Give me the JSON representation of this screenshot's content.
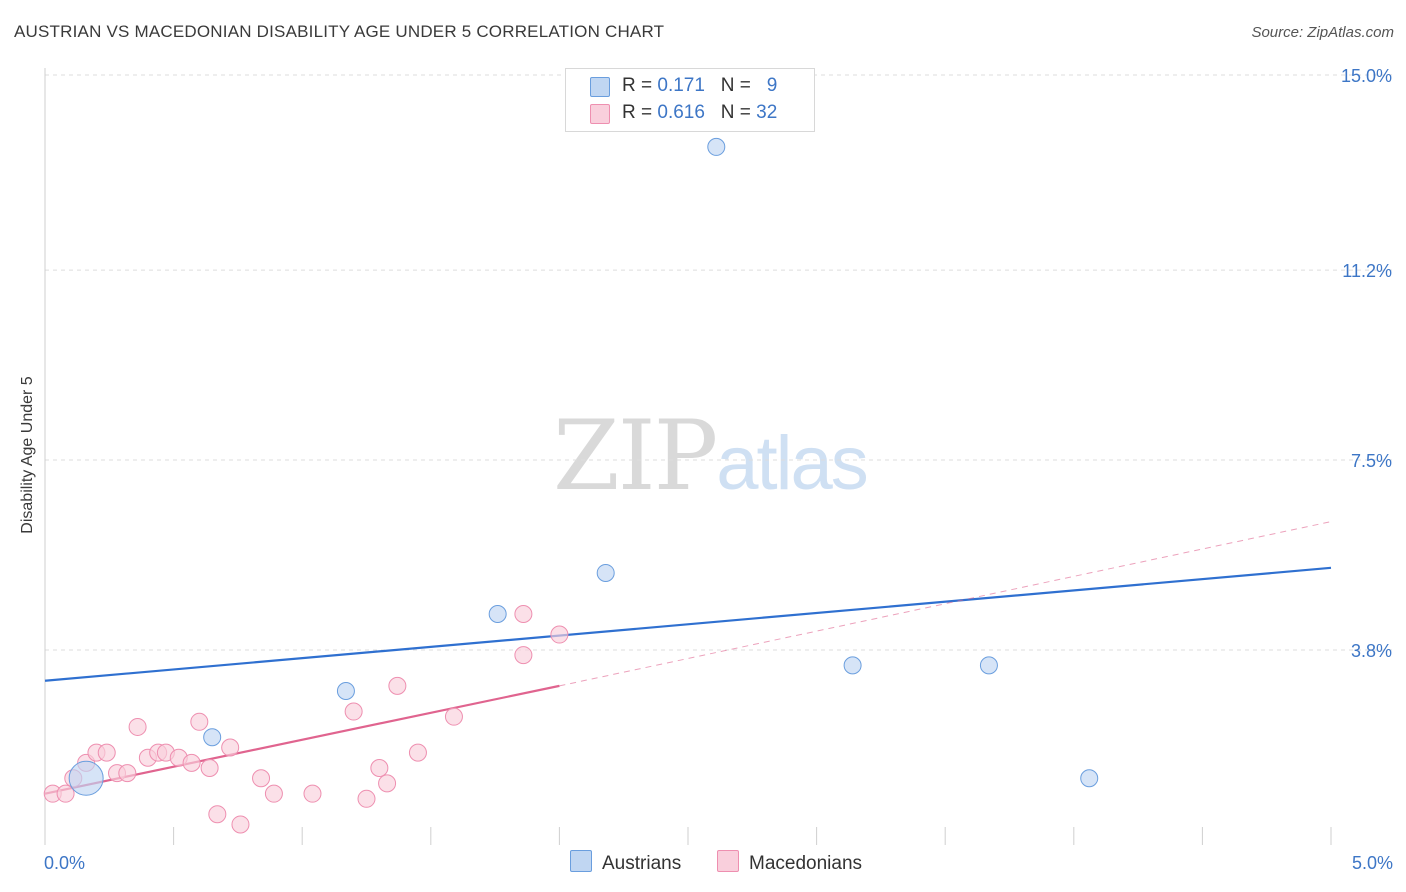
{
  "title": "AUSTRIAN VS MACEDONIAN DISABILITY AGE UNDER 5 CORRELATION CHART",
  "source": "Source: ZipAtlas.com",
  "watermark": {
    "zip": "ZIP",
    "atlas": "atlas"
  },
  "legend": [
    {
      "r_label": "R = ",
      "r_value": "0.171",
      "n_label": "N = ",
      "n_value": "9",
      "color": "#aac8f0"
    },
    {
      "r_label": "R = ",
      "r_value": "0.616",
      "n_label": "N = ",
      "n_value": "32",
      "color": "#f8bcd0"
    }
  ],
  "series_legend": [
    "Austrians",
    "Macedonians"
  ],
  "chart_data": {
    "type": "scatter",
    "title": "AUSTRIAN VS MACEDONIAN DISABILITY AGE UNDER 5 CORRELATION CHART",
    "xlabel": "",
    "ylabel": "Disability Age Under 5",
    "xlim": [
      0.0,
      5.0
    ],
    "ylim": [
      0.0,
      15.0
    ],
    "y_ticks": [
      3.8,
      7.5,
      11.2,
      15.0
    ],
    "y_tick_labels": [
      "3.8%",
      "7.5%",
      "11.2%",
      "15.0%"
    ],
    "x_tick_labels": [
      "0.0%",
      "5.0%"
    ],
    "series": [
      {
        "name": "Austrians",
        "color": "#6a9ede",
        "fill": "#c0d6f2",
        "trend_color": "#2f70d0",
        "points": [
          {
            "x": 0.16,
            "y": 1.3,
            "size": "large"
          },
          {
            "x": 0.65,
            "y": 2.1
          },
          {
            "x": 1.17,
            "y": 3.0
          },
          {
            "x": 1.76,
            "y": 4.5
          },
          {
            "x": 2.18,
            "y": 5.3
          },
          {
            "x": 2.61,
            "y": 13.6
          },
          {
            "x": 3.14,
            "y": 3.5
          },
          {
            "x": 3.67,
            "y": 3.5
          },
          {
            "x": 4.06,
            "y": 1.3
          }
        ],
        "trend": {
          "x": [
            0.0,
            5.0
          ],
          "y": [
            3.2,
            5.4
          ]
        }
      },
      {
        "name": "Macedonians",
        "color": "#ee8fb0",
        "fill": "#f9cfdc",
        "trend_color": "#e0648f",
        "points": [
          {
            "x": 0.03,
            "y": 1.0
          },
          {
            "x": 0.08,
            "y": 1.0
          },
          {
            "x": 0.11,
            "y": 1.3
          },
          {
            "x": 0.16,
            "y": 1.6
          },
          {
            "x": 0.2,
            "y": 1.8
          },
          {
            "x": 0.24,
            "y": 1.8
          },
          {
            "x": 0.28,
            "y": 1.4
          },
          {
            "x": 0.32,
            "y": 1.4
          },
          {
            "x": 0.36,
            "y": 2.3
          },
          {
            "x": 0.4,
            "y": 1.7
          },
          {
            "x": 0.44,
            "y": 1.8
          },
          {
            "x": 0.47,
            "y": 1.8
          },
          {
            "x": 0.52,
            "y": 1.7
          },
          {
            "x": 0.57,
            "y": 1.6
          },
          {
            "x": 0.6,
            "y": 2.4
          },
          {
            "x": 0.64,
            "y": 1.5
          },
          {
            "x": 0.67,
            "y": 0.6
          },
          {
            "x": 0.72,
            "y": 1.9
          },
          {
            "x": 0.76,
            "y": 0.4
          },
          {
            "x": 0.84,
            "y": 1.3
          },
          {
            "x": 0.89,
            "y": 1.0
          },
          {
            "x": 1.04,
            "y": 1.0
          },
          {
            "x": 1.2,
            "y": 2.6
          },
          {
            "x": 1.25,
            "y": 0.9
          },
          {
            "x": 1.3,
            "y": 1.5
          },
          {
            "x": 1.33,
            "y": 1.2
          },
          {
            "x": 1.37,
            "y": 3.1
          },
          {
            "x": 1.45,
            "y": 1.8
          },
          {
            "x": 1.59,
            "y": 2.5
          },
          {
            "x": 1.86,
            "y": 4.5
          },
          {
            "x": 1.86,
            "y": 3.7
          },
          {
            "x": 2.0,
            "y": 4.1
          }
        ],
        "trend": {
          "x": [
            0.0,
            2.0
          ],
          "y": [
            1.0,
            3.1
          ]
        },
        "trend_extension": {
          "x": [
            2.0,
            5.0
          ],
          "y": [
            3.1,
            6.3
          ]
        }
      }
    ]
  }
}
